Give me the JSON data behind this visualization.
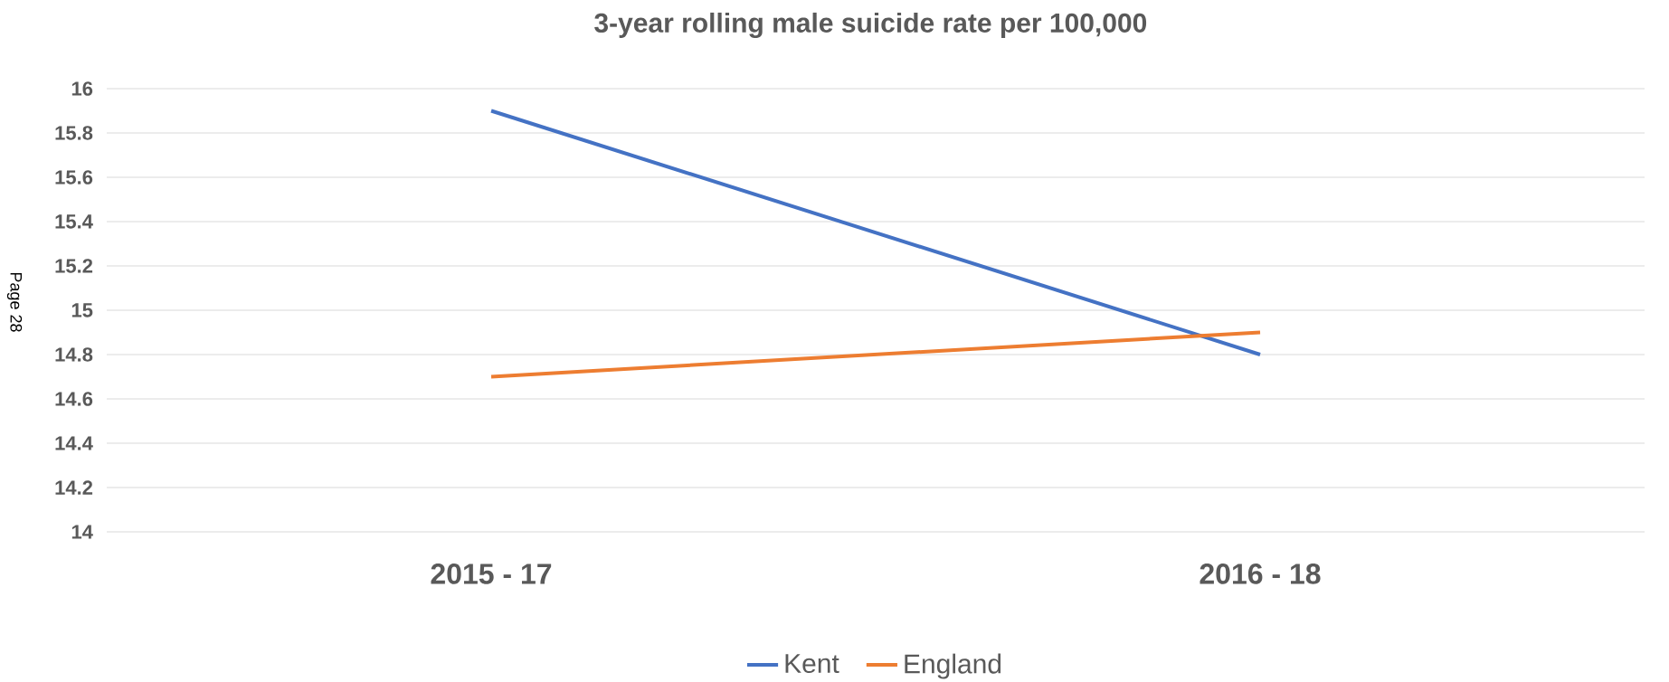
{
  "chart_data": {
    "type": "line",
    "title": "3-year rolling male suicide rate per 100,000",
    "categories": [
      "2015 - 17",
      "2016 - 18"
    ],
    "series": [
      {
        "name": "Kent",
        "color": "#4472c4",
        "values": [
          15.9,
          14.8
        ]
      },
      {
        "name": "England",
        "color": "#ed7d31",
        "values": [
          14.7,
          14.9
        ]
      }
    ],
    "ylim": [
      14,
      16
    ],
    "yticks": [
      14,
      14.2,
      14.4,
      14.6,
      14.8,
      15,
      15.2,
      15.4,
      15.6,
      15.8,
      16
    ],
    "grid": "y",
    "legend": "bottom",
    "marker": "none",
    "line_style": "solid",
    "annotations": [
      "Page 28"
    ]
  }
}
